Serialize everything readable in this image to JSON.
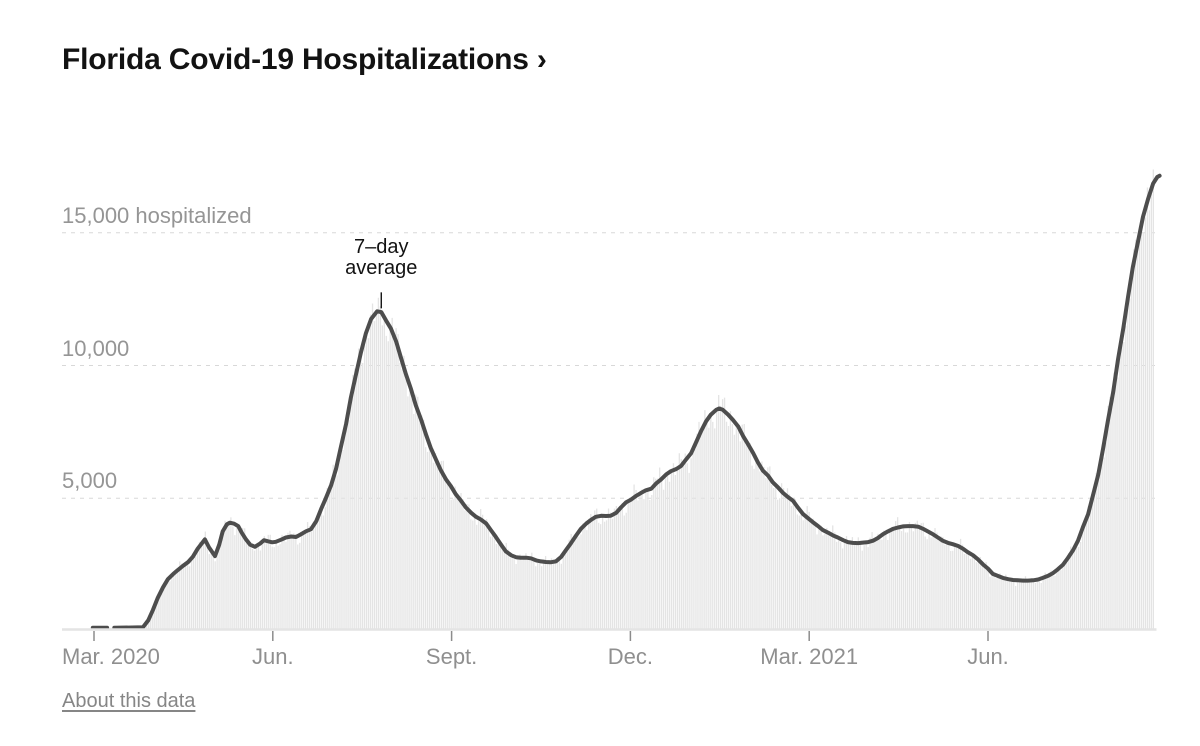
{
  "page": {
    "title_label": "Florida Covid-19 Hospitalizations ›",
    "about_link": "About this data"
  },
  "chart_data": {
    "type": "line",
    "title": "Florida Covid-19 Hospitalizations",
    "subtitle": "",
    "unit_label": "hospitalized",
    "legend_position": "none",
    "grid": "dashed-horizontal",
    "colors": {
      "line": "#4d4d4d",
      "bars": "#e4e4e4",
      "gridline": "#d8d8d8",
      "axis": "#e4e4e4",
      "tick": "#8c8c8c",
      "axis_label": "#929292",
      "title": "#121212",
      "annotation": "#121212",
      "link": "#868686"
    },
    "y_axis": {
      "range": [
        0,
        17500
      ],
      "ticks": [
        {
          "value": 5000,
          "label": "5,000"
        },
        {
          "value": 10000,
          "label": "10,000"
        },
        {
          "value": 15000,
          "label": "15,000 hospitalized"
        }
      ]
    },
    "x_axis": {
      "unit": "months since Mar. 1, 2020",
      "range_months": [
        0,
        17.9
      ],
      "ticks": [
        {
          "label": "Mar. 2020",
          "month": 0,
          "align": "left"
        },
        {
          "label": "Jun.",
          "month": 3
        },
        {
          "label": "Sept.",
          "month": 6
        },
        {
          "label": "Dec.",
          "month": 9
        },
        {
          "label": "Mar. 2021",
          "month": 12
        },
        {
          "label": "Jun.",
          "month": 15
        }
      ]
    },
    "annotation": {
      "text_line1": "7–day",
      "text_line2": "average",
      "month": 4.82,
      "value": 12040
    },
    "series": [
      {
        "name": "7-day average",
        "type": "line",
        "segments": [
          [
            [
              -0.02,
              120
            ],
            [
              0.22,
              120
            ]
          ],
          [
            [
              0.34,
              120
            ],
            [
              0.82,
              140
            ],
            [
              0.91,
              400
            ],
            [
              0.99,
              800
            ],
            [
              1.07,
              1250
            ],
            [
              1.16,
              1650
            ],
            [
              1.24,
              1950
            ],
            [
              1.33,
              2150
            ],
            [
              1.41,
              2300
            ],
            [
              1.49,
              2450
            ],
            [
              1.58,
              2600
            ],
            [
              1.66,
              2800
            ],
            [
              1.74,
              3100
            ],
            [
              1.86,
              3450
            ],
            [
              1.93,
              3150
            ],
            [
              2.03,
              2820
            ],
            [
              2.1,
              3250
            ],
            [
              2.16,
              3750
            ],
            [
              2.23,
              4020
            ],
            [
              2.28,
              4080
            ],
            [
              2.35,
              4040
            ],
            [
              2.42,
              3950
            ],
            [
              2.48,
              3700
            ],
            [
              2.55,
              3450
            ],
            [
              2.62,
              3250
            ],
            [
              2.7,
              3170
            ],
            [
              2.79,
              3300
            ],
            [
              2.85,
              3420
            ],
            [
              2.92,
              3380
            ],
            [
              2.99,
              3340
            ],
            [
              3.05,
              3360
            ],
            [
              3.14,
              3440
            ],
            [
              3.22,
              3520
            ],
            [
              3.31,
              3560
            ],
            [
              3.39,
              3540
            ],
            [
              3.47,
              3640
            ],
            [
              3.56,
              3760
            ],
            [
              3.64,
              3830
            ],
            [
              3.73,
              4140
            ],
            [
              3.81,
              4590
            ],
            [
              3.89,
              5000
            ],
            [
              3.98,
              5500
            ],
            [
              4.06,
              6100
            ],
            [
              4.14,
              6900
            ],
            [
              4.23,
              7800
            ],
            [
              4.31,
              8800
            ],
            [
              4.4,
              9700
            ],
            [
              4.48,
              10500
            ],
            [
              4.56,
              11200
            ],
            [
              4.65,
              11750
            ],
            [
              4.75,
              12040
            ],
            [
              4.82,
              12010
            ],
            [
              4.9,
              11700
            ],
            [
              4.98,
              11400
            ],
            [
              5.07,
              10900
            ],
            [
              5.15,
              10300
            ],
            [
              5.23,
              9700
            ],
            [
              5.32,
              9100
            ],
            [
              5.4,
              8500
            ],
            [
              5.49,
              7950
            ],
            [
              5.57,
              7400
            ],
            [
              5.65,
              6900
            ],
            [
              5.74,
              6450
            ],
            [
              5.82,
              6050
            ],
            [
              5.91,
              5700
            ],
            [
              5.99,
              5450
            ],
            [
              6.07,
              5150
            ],
            [
              6.16,
              4900
            ],
            [
              6.24,
              4650
            ],
            [
              6.33,
              4450
            ],
            [
              6.41,
              4300
            ],
            [
              6.49,
              4200
            ],
            [
              6.58,
              4050
            ],
            [
              6.66,
              3800
            ],
            [
              6.74,
              3550
            ],
            [
              6.83,
              3250
            ],
            [
              6.91,
              3000
            ],
            [
              7.0,
              2850
            ],
            [
              7.08,
              2780
            ],
            [
              7.16,
              2760
            ],
            [
              7.25,
              2760
            ],
            [
              7.33,
              2740
            ],
            [
              7.42,
              2660
            ],
            [
              7.5,
              2620
            ],
            [
              7.58,
              2600
            ],
            [
              7.67,
              2590
            ],
            [
              7.75,
              2620
            ],
            [
              7.84,
              2800
            ],
            [
              7.92,
              3050
            ],
            [
              8.0,
              3300
            ],
            [
              8.09,
              3600
            ],
            [
              8.17,
              3850
            ],
            [
              8.26,
              4050
            ],
            [
              8.34,
              4190
            ],
            [
              8.42,
              4300
            ],
            [
              8.51,
              4340
            ],
            [
              8.59,
              4330
            ],
            [
              8.67,
              4340
            ],
            [
              8.76,
              4450
            ],
            [
              8.84,
              4650
            ],
            [
              8.93,
              4850
            ],
            [
              9.01,
              4950
            ],
            [
              9.09,
              5080
            ],
            [
              9.18,
              5200
            ],
            [
              9.26,
              5300
            ],
            [
              9.35,
              5360
            ],
            [
              9.43,
              5550
            ],
            [
              9.51,
              5700
            ],
            [
              9.6,
              5900
            ],
            [
              9.68,
              6020
            ],
            [
              9.77,
              6100
            ],
            [
              9.85,
              6220
            ],
            [
              9.93,
              6450
            ],
            [
              10.02,
              6700
            ],
            [
              10.1,
              7100
            ],
            [
              10.18,
              7500
            ],
            [
              10.27,
              7900
            ],
            [
              10.35,
              8150
            ],
            [
              10.44,
              8330
            ],
            [
              10.49,
              8380
            ],
            [
              10.55,
              8330
            ],
            [
              10.64,
              8150
            ],
            [
              10.72,
              7950
            ],
            [
              10.81,
              7700
            ],
            [
              10.89,
              7350
            ],
            [
              10.97,
              7050
            ],
            [
              11.06,
              6700
            ],
            [
              11.14,
              6350
            ],
            [
              11.22,
              6050
            ],
            [
              11.31,
              5850
            ],
            [
              11.39,
              5600
            ],
            [
              11.48,
              5400
            ],
            [
              11.56,
              5200
            ],
            [
              11.64,
              5050
            ],
            [
              11.73,
              4900
            ],
            [
              11.81,
              4650
            ],
            [
              11.9,
              4400
            ],
            [
              11.98,
              4250
            ],
            [
              12.06,
              4100
            ],
            [
              12.15,
              3950
            ],
            [
              12.23,
              3800
            ],
            [
              12.32,
              3700
            ],
            [
              12.4,
              3600
            ],
            [
              12.48,
              3520
            ],
            [
              12.57,
              3420
            ],
            [
              12.65,
              3350
            ],
            [
              12.73,
              3320
            ],
            [
              12.82,
              3310
            ],
            [
              12.9,
              3330
            ],
            [
              12.99,
              3350
            ],
            [
              13.07,
              3400
            ],
            [
              13.15,
              3500
            ],
            [
              13.24,
              3650
            ],
            [
              13.32,
              3750
            ],
            [
              13.41,
              3850
            ],
            [
              13.49,
              3900
            ],
            [
              13.57,
              3940
            ],
            [
              13.66,
              3950
            ],
            [
              13.74,
              3950
            ],
            [
              13.83,
              3930
            ],
            [
              13.91,
              3850
            ],
            [
              13.99,
              3750
            ],
            [
              14.08,
              3640
            ],
            [
              14.16,
              3520
            ],
            [
              14.24,
              3400
            ],
            [
              14.33,
              3320
            ],
            [
              14.41,
              3270
            ],
            [
              14.5,
              3200
            ],
            [
              14.58,
              3100
            ],
            [
              14.66,
              2970
            ],
            [
              14.75,
              2850
            ],
            [
              14.83,
              2700
            ],
            [
              14.92,
              2500
            ],
            [
              15.0,
              2350
            ],
            [
              15.08,
              2150
            ],
            [
              15.17,
              2070
            ],
            [
              15.25,
              2000
            ],
            [
              15.34,
              1950
            ],
            [
              15.42,
              1920
            ],
            [
              15.5,
              1910
            ],
            [
              15.59,
              1900
            ],
            [
              15.67,
              1900
            ],
            [
              15.76,
              1910
            ],
            [
              15.84,
              1940
            ],
            [
              15.92,
              2000
            ],
            [
              16.01,
              2080
            ],
            [
              16.09,
              2180
            ],
            [
              16.17,
              2320
            ],
            [
              16.26,
              2500
            ],
            [
              16.34,
              2750
            ],
            [
              16.43,
              3050
            ],
            [
              16.51,
              3400
            ],
            [
              16.59,
              3900
            ],
            [
              16.68,
              4400
            ],
            [
              16.76,
              5100
            ],
            [
              16.85,
              5900
            ],
            [
              16.93,
              6850
            ],
            [
              17.01,
              7900
            ],
            [
              17.1,
              9000
            ],
            [
              17.18,
              10200
            ],
            [
              17.27,
              11400
            ],
            [
              17.35,
              12600
            ],
            [
              17.43,
              13700
            ],
            [
              17.52,
              14700
            ],
            [
              17.6,
              15600
            ],
            [
              17.69,
              16300
            ],
            [
              17.77,
              16850
            ],
            [
              17.84,
              17100
            ],
            [
              17.88,
              17150
            ]
          ]
        ]
      },
      {
        "name": "daily",
        "type": "bar",
        "note": "daily values drawn as thin vertical bars behind the 7-day average line"
      }
    ]
  }
}
